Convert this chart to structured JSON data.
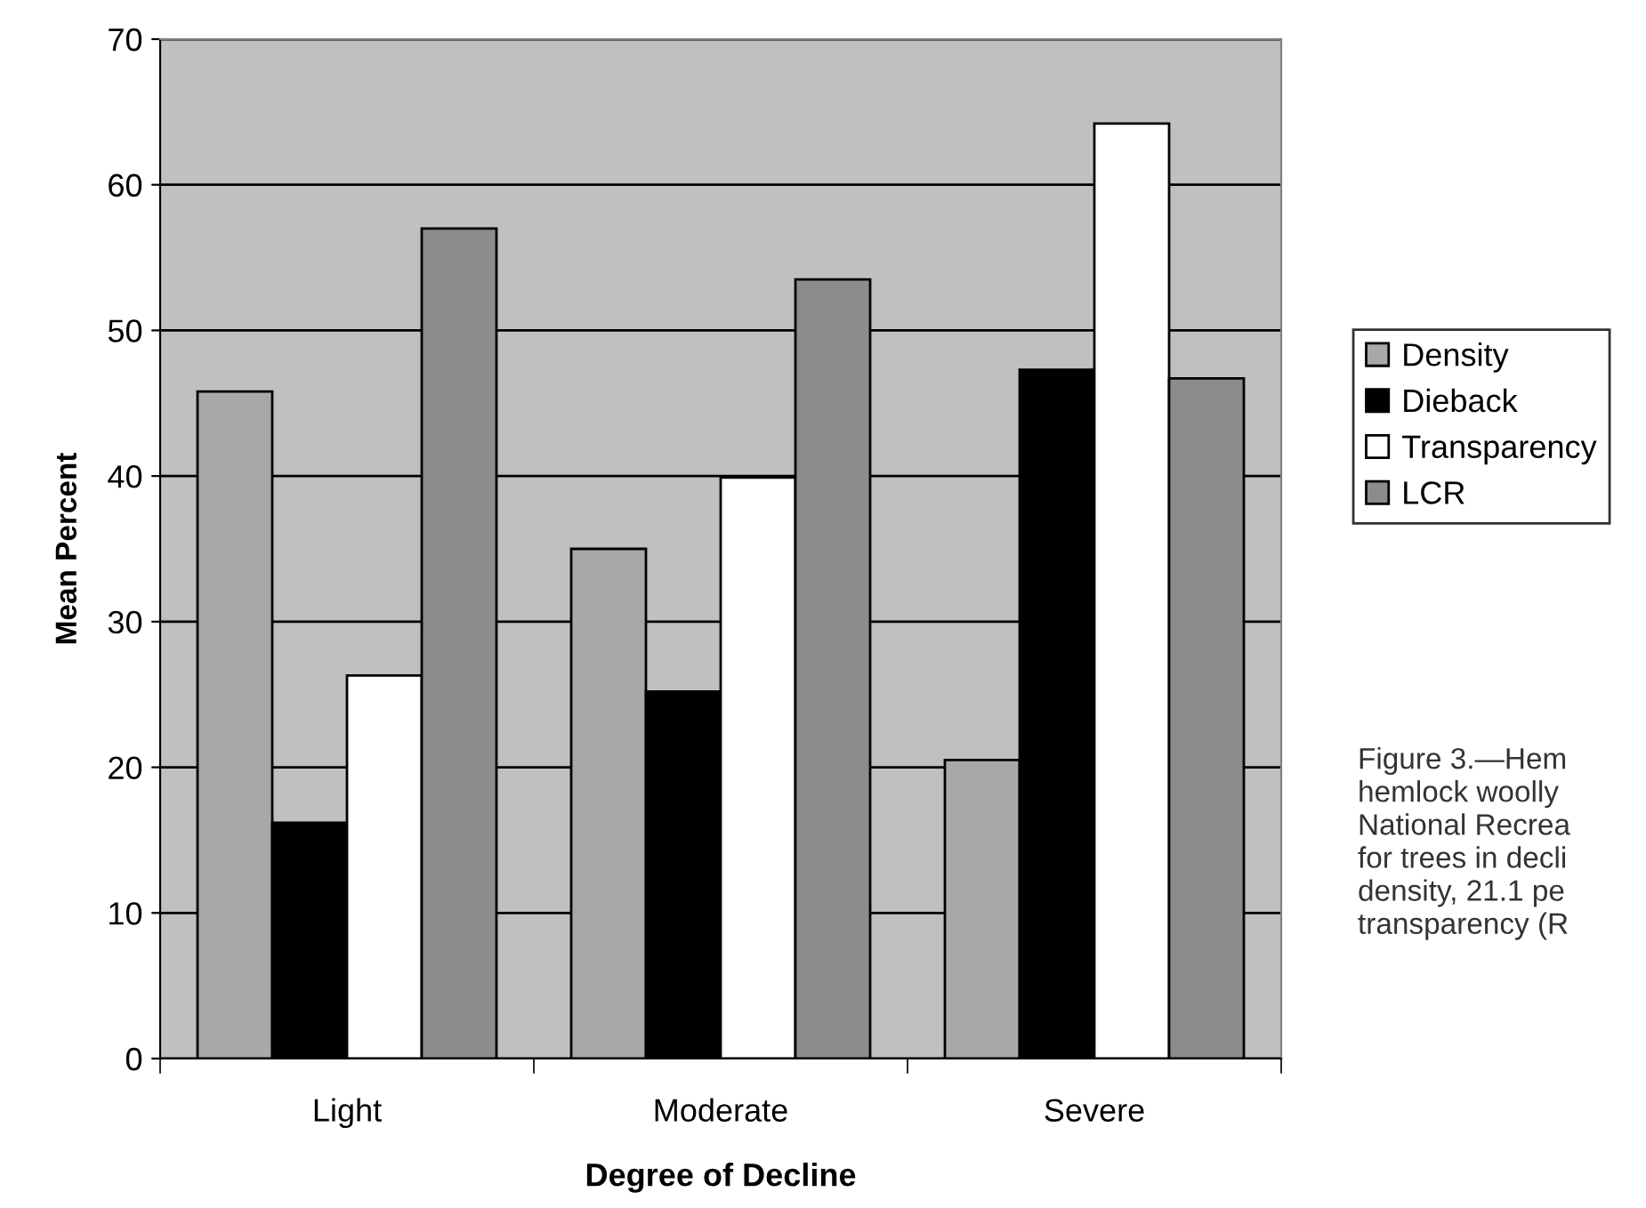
{
  "chart_data": {
    "type": "bar",
    "xlabel": "Degree of Decline",
    "ylabel": "Mean Percent",
    "categories": [
      "Light",
      "Moderate",
      "Severe"
    ],
    "series": [
      {
        "name": "Density",
        "color": "#a8a8a8",
        "values": [
          45.8,
          35.0,
          20.5
        ]
      },
      {
        "name": "Dieback",
        "color": "#000000",
        "values": [
          16.2,
          25.2,
          47.3
        ]
      },
      {
        "name": "Transparency",
        "color": "#ffffff",
        "values": [
          26.3,
          39.9,
          64.2
        ]
      },
      {
        "name": "LCR",
        "color": "#8c8c8c",
        "values": [
          57.0,
          53.5,
          46.7
        ]
      }
    ],
    "ylim": [
      0,
      70
    ],
    "yticks": [
      0,
      10,
      20,
      30,
      40,
      50,
      60,
      70
    ],
    "grid": "y",
    "legend": "right",
    "annotations": [
      "Figure 3.—Hem\nhemlock woolly\nNational Recrea\nfor trees in decli\ndensity, 21.1 pe\ntransparency (R"
    ]
  }
}
